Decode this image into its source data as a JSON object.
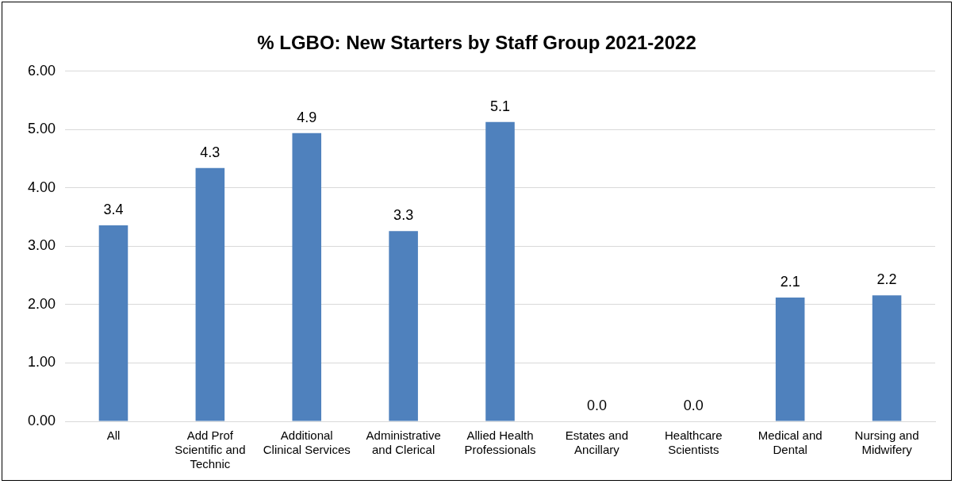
{
  "chart_data": {
    "type": "bar",
    "title": "% LGBO: New Starters by Staff Group 2021-2022",
    "categories": [
      "All",
      "Add Prof Scientific and Technic",
      "Additional Clinical Services",
      "Administrative and Clerical",
      "Allied Health Professionals",
      "Estates and Ancillary",
      "Healthcare Scientists",
      "Medical and Dental",
      "Nursing and Midwifery"
    ],
    "values": [
      3.36,
      4.34,
      4.94,
      3.26,
      5.13,
      0,
      0,
      2.12,
      2.16
    ],
    "value_labels": [
      "3.4",
      "4.3",
      "4.9",
      "3.3",
      "5.1",
      "0.0",
      "0.0",
      "2.1",
      "2.2"
    ],
    "color": "#4f81bd",
    "ylim": [
      0,
      6
    ],
    "yticks": [
      {
        "value": 0,
        "label": "0.00"
      },
      {
        "value": 1,
        "label": "1.00"
      },
      {
        "value": 2,
        "label": "2.00"
      },
      {
        "value": 3,
        "label": "3.00"
      },
      {
        "value": 4,
        "label": "4.00"
      },
      {
        "value": 5,
        "label": "5.00"
      },
      {
        "value": 6,
        "label": "6.00"
      }
    ],
    "grid": "y",
    "legend": false
  }
}
